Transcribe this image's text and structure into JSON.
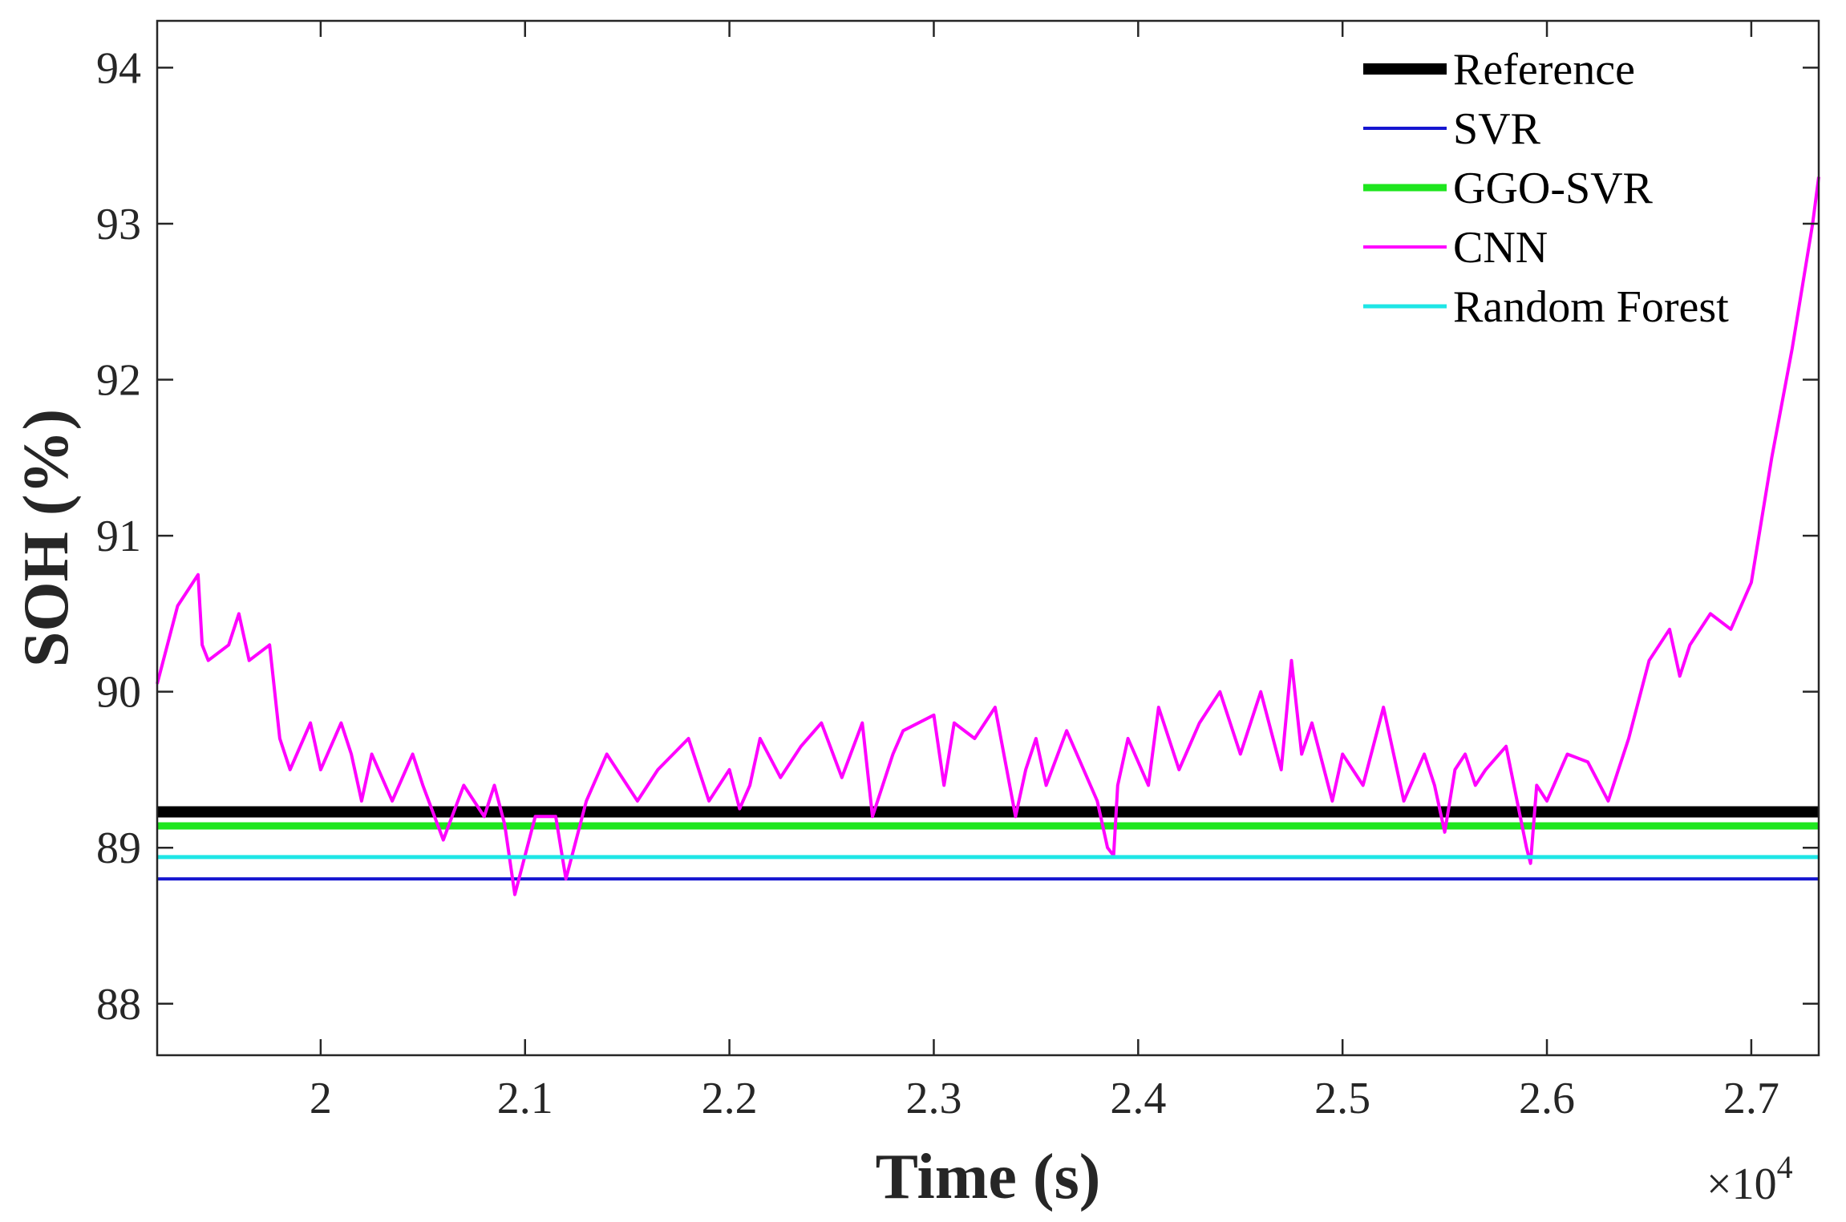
{
  "chart_data": {
    "type": "line",
    "xlabel": "Time (s)",
    "ylabel": "SOH (%)",
    "x_exponent_label": "×10",
    "x_exponent_power": "4",
    "xlim": [
      19200,
      27330
    ],
    "ylim": [
      87.67,
      94.3
    ],
    "x_ticks": [
      20000,
      21000,
      22000,
      23000,
      24000,
      25000,
      26000,
      27000
    ],
    "x_tick_labels": [
      "2",
      "2.1",
      "2.2",
      "2.3",
      "2.4",
      "2.5",
      "2.6",
      "2.7"
    ],
    "y_ticks": [
      88,
      89,
      90,
      91,
      92,
      93,
      94
    ],
    "y_tick_labels": [
      "88",
      "89",
      "90",
      "91",
      "92",
      "93",
      "94"
    ],
    "grid": false,
    "legend_position": "top-right",
    "series": [
      {
        "name": "Reference",
        "kind": "constant",
        "value": 89.23,
        "color": "#000000",
        "width": 14
      },
      {
        "name": "SVR",
        "kind": "constant",
        "value": 88.8,
        "color": "#1515d0",
        "width": 4
      },
      {
        "name": "GGO-SVR",
        "kind": "constant",
        "value": 89.14,
        "color": "#1ee61e",
        "width": 9
      },
      {
        "name": "CNN",
        "kind": "curve",
        "color": "#ff00ff",
        "width": 4,
        "x": [
          19200,
          19300,
          19400,
          19420,
          19450,
          19550,
          19600,
          19650,
          19750,
          19800,
          19850,
          19950,
          20000,
          20100,
          20150,
          20200,
          20250,
          20350,
          20450,
          20500,
          20600,
          20700,
          20800,
          20850,
          20900,
          20950,
          21050,
          21150,
          21200,
          21300,
          21400,
          21550,
          21650,
          21800,
          21900,
          22000,
          22050,
          22100,
          22150,
          22250,
          22350,
          22450,
          22550,
          22650,
          22700,
          22800,
          22850,
          23000,
          23050,
          23100,
          23200,
          23300,
          23400,
          23450,
          23500,
          23550,
          23650,
          23700,
          23800,
          23850,
          23880,
          23900,
          23950,
          24050,
          24100,
          24200,
          24300,
          24400,
          24500,
          24600,
          24700,
          24750,
          24800,
          24850,
          24900,
          24950,
          25000,
          25100,
          25200,
          25300,
          25400,
          25450,
          25500,
          25550,
          25600,
          25650,
          25700,
          25800,
          25900,
          25920,
          25950,
          26000,
          26100,
          26200,
          26300,
          26350,
          26400,
          26500,
          26600,
          26650,
          26700,
          26800,
          26900,
          27000,
          27100,
          27200,
          27300,
          27330
        ],
        "y": [
          90.05,
          90.55,
          90.75,
          90.3,
          90.2,
          90.3,
          90.5,
          90.2,
          90.3,
          89.7,
          89.5,
          89.8,
          89.5,
          89.8,
          89.6,
          89.3,
          89.6,
          89.3,
          89.6,
          89.4,
          89.05,
          89.4,
          89.2,
          89.4,
          89.15,
          88.7,
          89.2,
          89.2,
          88.8,
          89.3,
          89.6,
          89.3,
          89.5,
          89.7,
          89.3,
          89.5,
          89.25,
          89.4,
          89.7,
          89.45,
          89.65,
          89.8,
          89.45,
          89.8,
          89.2,
          89.6,
          89.75,
          89.85,
          89.4,
          89.8,
          89.7,
          89.9,
          89.2,
          89.5,
          89.7,
          89.4,
          89.75,
          89.6,
          89.3,
          89.0,
          88.95,
          89.4,
          89.7,
          89.4,
          89.9,
          89.5,
          89.8,
          90.0,
          89.6,
          90.0,
          89.5,
          90.2,
          89.6,
          89.8,
          89.55,
          89.3,
          89.6,
          89.4,
          89.9,
          89.3,
          89.6,
          89.4,
          89.1,
          89.5,
          89.6,
          89.4,
          89.5,
          89.65,
          89.0,
          88.9,
          89.4,
          89.3,
          89.6,
          89.55,
          89.3,
          89.5,
          89.7,
          90.2,
          90.4,
          90.1,
          90.3,
          90.5,
          90.4,
          90.7,
          91.5,
          92.2,
          93.0,
          93.3
        ]
      },
      {
        "name": "Random Forest",
        "kind": "constant",
        "value": 88.94,
        "color": "#1ee6e6",
        "width": 5
      }
    ]
  }
}
